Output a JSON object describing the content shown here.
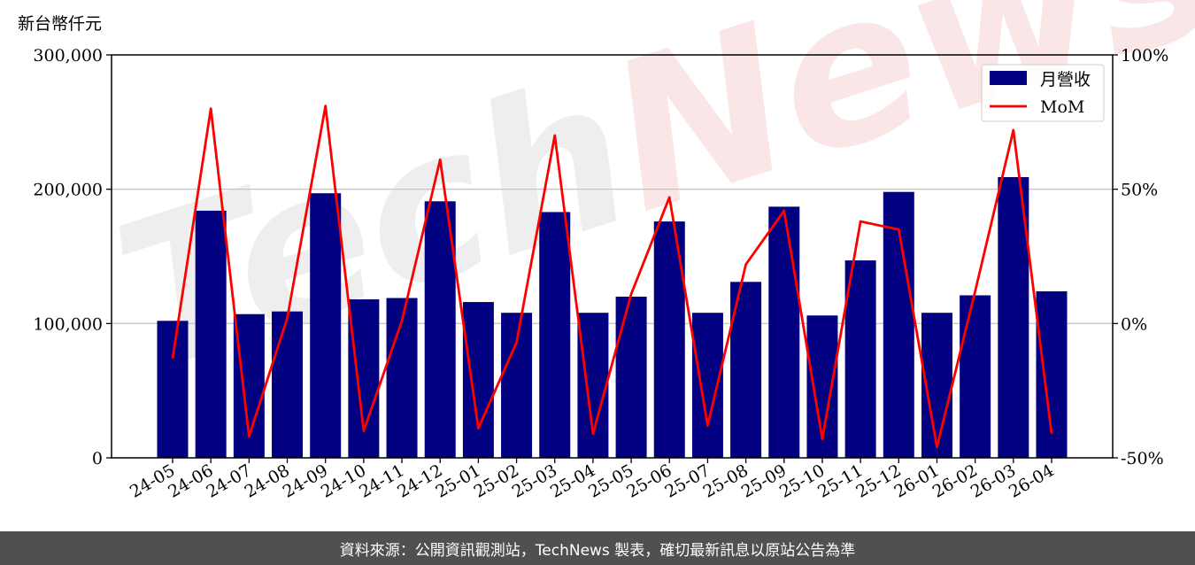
{
  "footer": {
    "text": "資料來源：公開資訊觀測站，TechNews 製表，確切最新訊息以原站公告為準"
  },
  "watermark": {
    "part1": "Tech",
    "part2": "News"
  },
  "colors": {
    "bar": "#000080",
    "line": "#ff0000",
    "grid": "#c8c8c8"
  },
  "chart_data": {
    "type": "bar",
    "ylabel": "新台幣仟元",
    "categories": [
      "24-05",
      "24-06",
      "24-07",
      "24-08",
      "24-09",
      "24-10",
      "24-11",
      "24-12",
      "25-01",
      "25-02",
      "25-03",
      "25-04",
      "25-05",
      "25-06",
      "25-07",
      "25-08",
      "25-09",
      "25-10",
      "25-11",
      "25-12",
      "26-01",
      "26-02",
      "26-03",
      "26-04"
    ],
    "series": [
      {
        "name": "月營收",
        "type": "bar",
        "axis": "left",
        "values": [
          102000,
          184000,
          107000,
          109000,
          197000,
          118000,
          119000,
          191000,
          116000,
          108000,
          183000,
          108000,
          120000,
          176000,
          108000,
          131000,
          187000,
          106000,
          147000,
          198000,
          108000,
          121000,
          209000,
          124000
        ]
      },
      {
        "name": "MoM",
        "type": "line",
        "axis": "right",
        "unit": "%",
        "values": [
          -13,
          80,
          -42,
          2,
          81,
          -40,
          1,
          61,
          -39,
          -7,
          70,
          -41,
          11,
          47,
          -38,
          22,
          42,
          -43,
          38,
          35,
          -46,
          12,
          72,
          -41
        ]
      }
    ],
    "left_axis": {
      "ylim": [
        0,
        300000
      ],
      "ticks": [
        0,
        100000,
        200000,
        300000
      ],
      "tick_labels": [
        "0",
        "100,000",
        "200,000",
        "300,000"
      ]
    },
    "right_axis": {
      "ylim": [
        -50,
        100
      ],
      "ticks": [
        -50,
        0,
        50,
        100
      ],
      "tick_labels": [
        "-50%",
        "0%",
        "50%",
        "100%"
      ]
    },
    "grid": true,
    "legend": "top-right"
  }
}
